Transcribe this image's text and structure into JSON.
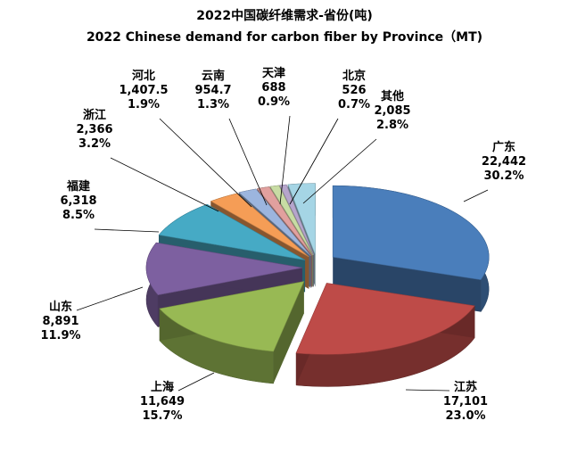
{
  "chart_data": {
    "type": "pie",
    "title": "2022中国碳纤维需求-省份(吨)",
    "subtitle": "2022 Chinese demand for carbon fiber by Province（MT)",
    "slices": [
      {
        "name": "广东",
        "value": 22442,
        "value_label": "22,442",
        "percent_label": "30.2%",
        "color": "#4a7ebb"
      },
      {
        "name": "江苏",
        "value": 17101,
        "value_label": "17,101",
        "percent_label": "23.0%",
        "color": "#be4b48"
      },
      {
        "name": "上海",
        "value": 11649,
        "value_label": "11,649",
        "percent_label": "15.7%",
        "color": "#98b954"
      },
      {
        "name": "山东",
        "value": 8891,
        "value_label": "8,891",
        "percent_label": "11.9%",
        "color": "#7d60a0"
      },
      {
        "name": "福建",
        "value": 6318,
        "value_label": "6,318",
        "percent_label": "8.5%",
        "color": "#46aac5"
      },
      {
        "name": "浙江",
        "value": 2366,
        "value_label": "2,366",
        "percent_label": "3.2%",
        "color": "#f59d56"
      },
      {
        "name": "河北",
        "value": 1407.5,
        "value_label": "1,407.5",
        "percent_label": "1.9%",
        "color": "#9cb5de"
      },
      {
        "name": "云南",
        "value": 954.7,
        "value_label": "954.7",
        "percent_label": "1.3%",
        "color": "#e1a09e"
      },
      {
        "name": "天津",
        "value": 688,
        "value_label": "688",
        "percent_label": "0.9%",
        "color": "#c8dca4"
      },
      {
        "name": "北京",
        "value": 526,
        "value_label": "526",
        "percent_label": "0.7%",
        "color": "#b6a5cc"
      },
      {
        "name": "其他",
        "value": 2085,
        "value_label": "2,085",
        "percent_label": "2.8%",
        "color": "#a5d5e5"
      }
    ],
    "style": "3d-exploded"
  }
}
